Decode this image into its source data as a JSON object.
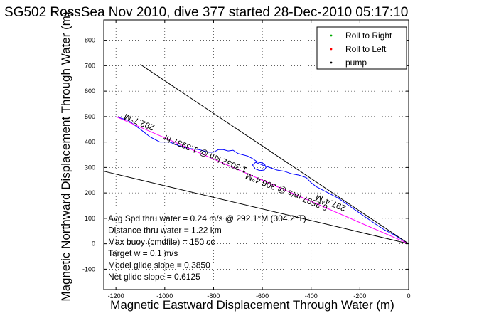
{
  "chart_data": {
    "type": "line",
    "title": "SG502 RossSea Nov 2010, dive 377 started 28-Dec-2010 05:17:10",
    "xlabel": "Magnetic Eastward Displacement Through Water (m)",
    "ylabel": "Magnetic Northward Displacement Through Water (m)",
    "xlim": [
      -1250,
      0
    ],
    "ylim": [
      -180,
      880
    ],
    "xticks": [
      -1200,
      -1000,
      -800,
      -600,
      -400,
      -200,
      0
    ],
    "yticks": [
      -100,
      0,
      100,
      200,
      300,
      400,
      500,
      600,
      700,
      800
    ],
    "grid": true,
    "legend_position": "top-right",
    "legend": [
      {
        "label": "Roll to Right",
        "color": "#00aa00",
        "marker": "."
      },
      {
        "label": "Roll to Left",
        "color": "#ff0000",
        "marker": "."
      },
      {
        "label": "pump",
        "color": "#000000",
        "marker": "."
      }
    ],
    "series": [
      {
        "color": "#0000ff",
        "x": [
          -1200,
          -1150,
          -1100,
          -1060,
          -1020,
          -980,
          -940,
          -900,
          -860,
          -820,
          -800,
          -780,
          -760,
          -740,
          -720,
          -700,
          -680,
          -660,
          -640,
          -625,
          -615,
          -600,
          -590,
          -585,
          -592,
          -610,
          -630,
          -640,
          -628,
          -600,
          -570,
          -540,
          -510,
          -480,
          -450,
          -420,
          -400,
          -380,
          -350,
          -320,
          -290,
          -260,
          -230,
          -200,
          -170,
          -140,
          -100,
          -60,
          -30,
          0
        ],
        "y": [
          500,
          485,
          450,
          420,
          400,
          400,
          385,
          375,
          370,
          360,
          360,
          370,
          370,
          365,
          368,
          355,
          350,
          345,
          335,
          325,
          320,
          318,
          312,
          300,
          290,
          288,
          295,
          310,
          320,
          310,
          300,
          290,
          285,
          275,
          270,
          260,
          240,
          225,
          210,
          195,
          180,
          160,
          140,
          120,
          100,
          80,
          55,
          35,
          18,
          0
        ]
      },
      {
        "color": "#ff00ff",
        "x": [
          -1200,
          0
        ],
        "y": [
          500,
          0
        ]
      },
      {
        "color": "#000000",
        "x": [
          -1100,
          0
        ],
        "y": [
          705,
          0
        ]
      },
      {
        "color": "#000000",
        "x": [
          -1250,
          0
        ],
        "y": [
          285,
          0
        ]
      }
    ],
    "annotations": [
      {
        "text": "292.7°M",
        "x": -1040,
        "y": 465,
        "rotation": 22
      },
      {
        "text": "0.2597 m/s @ 306.4°M",
        "x": -330,
        "y": 150,
        "rotation": 22
      },
      {
        "text": "297.4°M",
        "x": -255,
        "y": 148,
        "rotation": 22
      },
      {
        "text": "1.3032 km @ 1.3937 hr",
        "x": -660,
        "y": 298,
        "rotation": 22
      }
    ],
    "info_lines": [
      "Avg Spd thru water = 0.24 m/s @ 292.1°M (304.2°T)",
      "Distance thru water = 1.22 km",
      "Max buoy (cmdfile) = 150 cc",
      "Target w = 0.1 m/s",
      "Model glide slope = 0.3850",
      "Net glide slope = 0.6125"
    ]
  }
}
